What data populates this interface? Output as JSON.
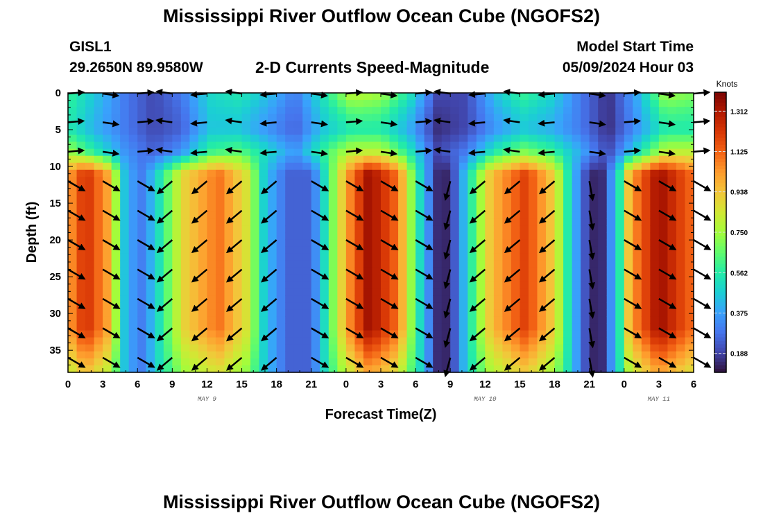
{
  "header": {
    "title": "Mississippi River Outflow Ocean Cube (NGOFS2)",
    "station": "GISL1",
    "coords": "29.2650N  89.9580W",
    "plot_title": "2-D Currents Speed-Magnitude",
    "model_start_label": "Model Start Time",
    "model_start_value": "05/09/2024 Hour 03"
  },
  "footer": {
    "title": "Mississippi River Outflow Ocean Cube (NGOFS2)"
  },
  "chart_data": {
    "type": "heatmap",
    "title": "2-D Currents Speed-Magnitude",
    "xlabel": "Forecast Time(Z)",
    "ylabel": "Depth (ft)",
    "x_tick_labels": [
      "0",
      "3",
      "6",
      "9",
      "12",
      "15",
      "18",
      "21",
      "0",
      "3",
      "6",
      "9",
      "12",
      "15",
      "18",
      "21",
      "0",
      "3",
      "6"
    ],
    "x_range_hours": [
      0,
      54
    ],
    "date_labels": [
      {
        "hour": 12,
        "text": "MAY 9"
      },
      {
        "hour": 36,
        "text": "MAY 10"
      },
      {
        "hour": 51,
        "text": "MAY 11"
      }
    ],
    "y_ticks": [
      0,
      5,
      10,
      15,
      20,
      25,
      30,
      35
    ],
    "y_range_ft": [
      0,
      38
    ],
    "y_inverted": true,
    "colorbar": {
      "unit": "Knots",
      "min": 0.1,
      "max": 1.4,
      "tick_labels": [
        "1.312",
        "1.125",
        "0.938",
        "0.750",
        "0.562",
        "0.375",
        "0.188"
      ],
      "tick_values": [
        1.312,
        1.125,
        0.938,
        0.75,
        0.562,
        0.375,
        0.188
      ],
      "colors": [
        "#30123b",
        "#4145ab",
        "#4675ed",
        "#39a2fc",
        "#1bcfd4",
        "#24eca6",
        "#61fc6c",
        "#a4fc3b",
        "#d1e834",
        "#f3c63a",
        "#fe9b2d",
        "#f36315",
        "#d93806",
        "#b11901",
        "#7a0403"
      ]
    },
    "surface_layers": [
      {
        "depth_ft": 0,
        "speed_knots": [
          0.6,
          0.45,
          0.3,
          0.2,
          0.3,
          0.5,
          0.55,
          0.45,
          0.3,
          0.55,
          0.8,
          0.75,
          0.55,
          0.2,
          0.2,
          0.45,
          0.6,
          0.5,
          0.3,
          0.15,
          0.4,
          0.75,
          0.7
        ]
      },
      {
        "depth_ft": 5,
        "speed_knots": [
          0.55,
          0.4,
          0.3,
          0.2,
          0.25,
          0.45,
          0.45,
          0.35,
          0.25,
          0.45,
          0.55,
          0.55,
          0.4,
          0.15,
          0.2,
          0.35,
          0.45,
          0.4,
          0.3,
          0.15,
          0.35,
          0.55,
          0.55
        ]
      },
      {
        "depth_ft": 8,
        "speed_knots": [
          0.75,
          0.55,
          0.35,
          0.25,
          0.35,
          0.6,
          0.65,
          0.5,
          0.35,
          0.6,
          0.8,
          0.8,
          0.55,
          0.2,
          0.3,
          0.55,
          0.7,
          0.6,
          0.4,
          0.2,
          0.5,
          0.8,
          0.8
        ]
      }
    ],
    "deep_layer_speed_knots": [
      {
        "hour": 0,
        "value": 1.0
      },
      {
        "hour": 1.5,
        "value": 1.25
      },
      {
        "hour": 3.5,
        "value": 1.0
      },
      {
        "hour": 5,
        "value": 0.4
      },
      {
        "hour": 6.5,
        "value": 0.3
      },
      {
        "hour": 8,
        "value": 0.55
      },
      {
        "hour": 10,
        "value": 0.9
      },
      {
        "hour": 13,
        "value": 1.1
      },
      {
        "hour": 15.5,
        "value": 0.85
      },
      {
        "hour": 17,
        "value": 0.45
      },
      {
        "hour": 19,
        "value": 0.25
      },
      {
        "hour": 21,
        "value": 0.25
      },
      {
        "hour": 22.5,
        "value": 0.6
      },
      {
        "hour": 24,
        "value": 1.0
      },
      {
        "hour": 26,
        "value": 1.35
      },
      {
        "hour": 28.5,
        "value": 1.1
      },
      {
        "hour": 30,
        "value": 0.6
      },
      {
        "hour": 32,
        "value": 0.12
      },
      {
        "hour": 33,
        "value": 0.15
      },
      {
        "hour": 34.5,
        "value": 0.5
      },
      {
        "hour": 36.5,
        "value": 0.95
      },
      {
        "hour": 39.5,
        "value": 1.2
      },
      {
        "hour": 42,
        "value": 0.9
      },
      {
        "hour": 43.5,
        "value": 0.45
      },
      {
        "hour": 45,
        "value": 0.15
      },
      {
        "hour": 46,
        "value": 0.12
      },
      {
        "hour": 47.5,
        "value": 0.5
      },
      {
        "hour": 48.5,
        "value": 1.0
      },
      {
        "hour": 51,
        "value": 1.35
      },
      {
        "hour": 54,
        "value": 1.1
      }
    ],
    "vector_columns": [
      {
        "hour": 0,
        "dir_deg": -30
      },
      {
        "hour": 3,
        "dir_deg": -30
      },
      {
        "hour": 6,
        "dir_deg": -30
      },
      {
        "hour": 9,
        "dir_deg": -140
      },
      {
        "hour": 12,
        "dir_deg": -140
      },
      {
        "hour": 15,
        "dir_deg": -140
      },
      {
        "hour": 18,
        "dir_deg": -140
      },
      {
        "hour": 21,
        "dir_deg": -30
      },
      {
        "hour": 24,
        "dir_deg": -30
      },
      {
        "hour": 27,
        "dir_deg": -30
      },
      {
        "hour": 30,
        "dir_deg": -30
      },
      {
        "hour": 33,
        "dir_deg": -105
      },
      {
        "hour": 36,
        "dir_deg": -140
      },
      {
        "hour": 39,
        "dir_deg": -140
      },
      {
        "hour": 42,
        "dir_deg": -140
      },
      {
        "hour": 45,
        "dir_deg": -80
      },
      {
        "hour": 48,
        "dir_deg": -30
      },
      {
        "hour": 51,
        "dir_deg": -30
      },
      {
        "hour": 54,
        "dir_deg": -30
      }
    ]
  }
}
